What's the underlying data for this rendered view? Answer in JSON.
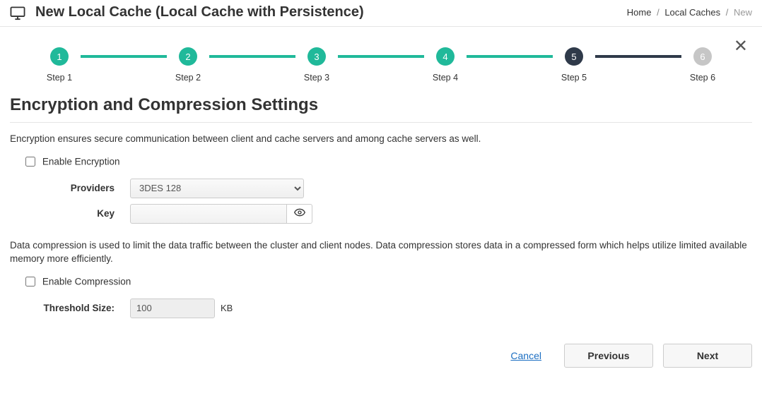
{
  "colors": {
    "step_done": "#20b99a",
    "step_active": "#2f3a4a",
    "step_todo": "#c6c6c6",
    "connector_done": "#20b99a",
    "connector_active": "#2f3a4a",
    "connector_todo": "#dcdcdc"
  },
  "header": {
    "title": "New Local Cache (Local Cache with Persistence)",
    "breadcrumb": {
      "home": "Home",
      "mid": "Local Caches",
      "current": "New"
    }
  },
  "stepper": {
    "items": [
      {
        "num": "1",
        "label": "Step 1",
        "state": "done"
      },
      {
        "num": "2",
        "label": "Step 2",
        "state": "done"
      },
      {
        "num": "3",
        "label": "Step 3",
        "state": "done"
      },
      {
        "num": "4",
        "label": "Step 4",
        "state": "done"
      },
      {
        "num": "5",
        "label": "Step 5",
        "state": "active"
      },
      {
        "num": "6",
        "label": "Step 6",
        "state": "todo"
      }
    ]
  },
  "section": {
    "title": "Encryption and Compression Settings",
    "enc_desc": "Encryption ensures secure communication between client and cache servers and among cache servers as well.",
    "enable_encryption_label": "Enable Encryption",
    "enable_encryption_checked": false,
    "providers_label": "Providers",
    "providers_value": "3DES 128",
    "key_label": "Key",
    "key_value": "",
    "comp_desc": "Data compression is used to limit the data traffic between the cluster and client nodes. Data compression stores data in a compressed form which helps utilize limited available memory more efficiently.",
    "enable_compression_label": "Enable Compression",
    "enable_compression_checked": false,
    "threshold_label": "Threshold Size:",
    "threshold_value": "100",
    "threshold_unit": "KB"
  },
  "footer": {
    "cancel": "Cancel",
    "previous": "Previous",
    "next": "Next"
  }
}
